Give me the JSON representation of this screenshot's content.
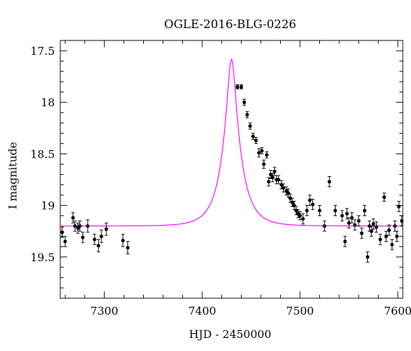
{
  "chart_data": {
    "type": "scatter",
    "title": "OGLE-2016-BLG-0226",
    "xlabel": "HJD - 2450000",
    "ylabel": "I magnitude",
    "xlim": [
      7255,
      7605
    ],
    "ylim": [
      19.9,
      17.4
    ],
    "y_inverted": true,
    "grid": false,
    "x_ticks": [
      7300,
      7400,
      7500,
      7600
    ],
    "x_tick_labels": [
      "7300",
      "7400",
      "7500",
      "7600"
    ],
    "y_ticks": [
      17.5,
      18,
      18.5,
      19,
      19.5
    ],
    "y_tick_labels": [
      "17.5",
      "18",
      "18.5",
      "19",
      "19.5"
    ],
    "colors": {
      "model": "#ff00ff",
      "data": "#000000"
    },
    "model": {
      "name": "",
      "t0": 7430,
      "u0": 0.23,
      "tE": 18,
      "baseline_mag": 19.2
    },
    "series": [
      {
        "name": "",
        "x": [
          7257,
          7260,
          7268,
          7270,
          7273,
          7275,
          7278,
          7283,
          7290,
          7294,
          7297,
          7302,
          7319,
          7324,
          7436,
          7440,
          7443,
          7446,
          7449,
          7452,
          7455,
          7458,
          7461,
          7463,
          7466,
          7468,
          7470,
          7472,
          7474,
          7476,
          7478,
          7481,
          7483,
          7486,
          7488,
          7490,
          7492,
          7494,
          7496,
          7498,
          7500,
          7503,
          7507,
          7510,
          7513,
          7520,
          7525,
          7530,
          7536,
          7543,
          7546,
          7548,
          7550,
          7553,
          7556,
          7560,
          7563,
          7566,
          7569,
          7571,
          7573,
          7575,
          7578,
          7582,
          7586,
          7588,
          7591,
          7594,
          7597,
          7599,
          7601,
          7604
        ],
        "y": [
          19.26,
          19.35,
          19.12,
          19.2,
          19.22,
          19.2,
          19.31,
          19.2,
          19.33,
          19.39,
          19.3,
          19.23,
          19.34,
          19.41,
          17.85,
          17.85,
          18.0,
          18.12,
          18.23,
          18.33,
          18.37,
          18.49,
          18.47,
          18.6,
          18.51,
          18.77,
          18.7,
          18.73,
          18.67,
          18.75,
          18.75,
          18.8,
          18.83,
          18.86,
          18.88,
          18.93,
          18.97,
          19.0,
          19.05,
          19.08,
          19.1,
          19.13,
          19.05,
          18.95,
          18.99,
          19.05,
          19.2,
          18.77,
          19.05,
          19.1,
          19.35,
          19.08,
          19.17,
          19.12,
          19.19,
          19.15,
          19.27,
          19.05,
          19.5,
          19.2,
          19.25,
          19.18,
          19.21,
          19.33,
          18.92,
          19.3,
          19.24,
          19.38,
          19.2,
          19.3,
          19.01,
          19.15
        ],
        "err": [
          0.05,
          0.05,
          0.05,
          0.05,
          0.05,
          0.05,
          0.05,
          0.06,
          0.05,
          0.06,
          0.06,
          0.06,
          0.06,
          0.06,
          0.02,
          0.02,
          0.03,
          0.03,
          0.03,
          0.03,
          0.03,
          0.04,
          0.03,
          0.04,
          0.03,
          0.04,
          0.04,
          0.04,
          0.04,
          0.04,
          0.04,
          0.04,
          0.04,
          0.04,
          0.04,
          0.04,
          0.04,
          0.04,
          0.04,
          0.04,
          0.04,
          0.05,
          0.05,
          0.05,
          0.05,
          0.05,
          0.05,
          0.05,
          0.05,
          0.05,
          0.05,
          0.05,
          0.05,
          0.05,
          0.05,
          0.05,
          0.05,
          0.05,
          0.05,
          0.05,
          0.05,
          0.05,
          0.05,
          0.05,
          0.04,
          0.05,
          0.05,
          0.05,
          0.05,
          0.05,
          0.05,
          0.05
        ]
      }
    ]
  }
}
